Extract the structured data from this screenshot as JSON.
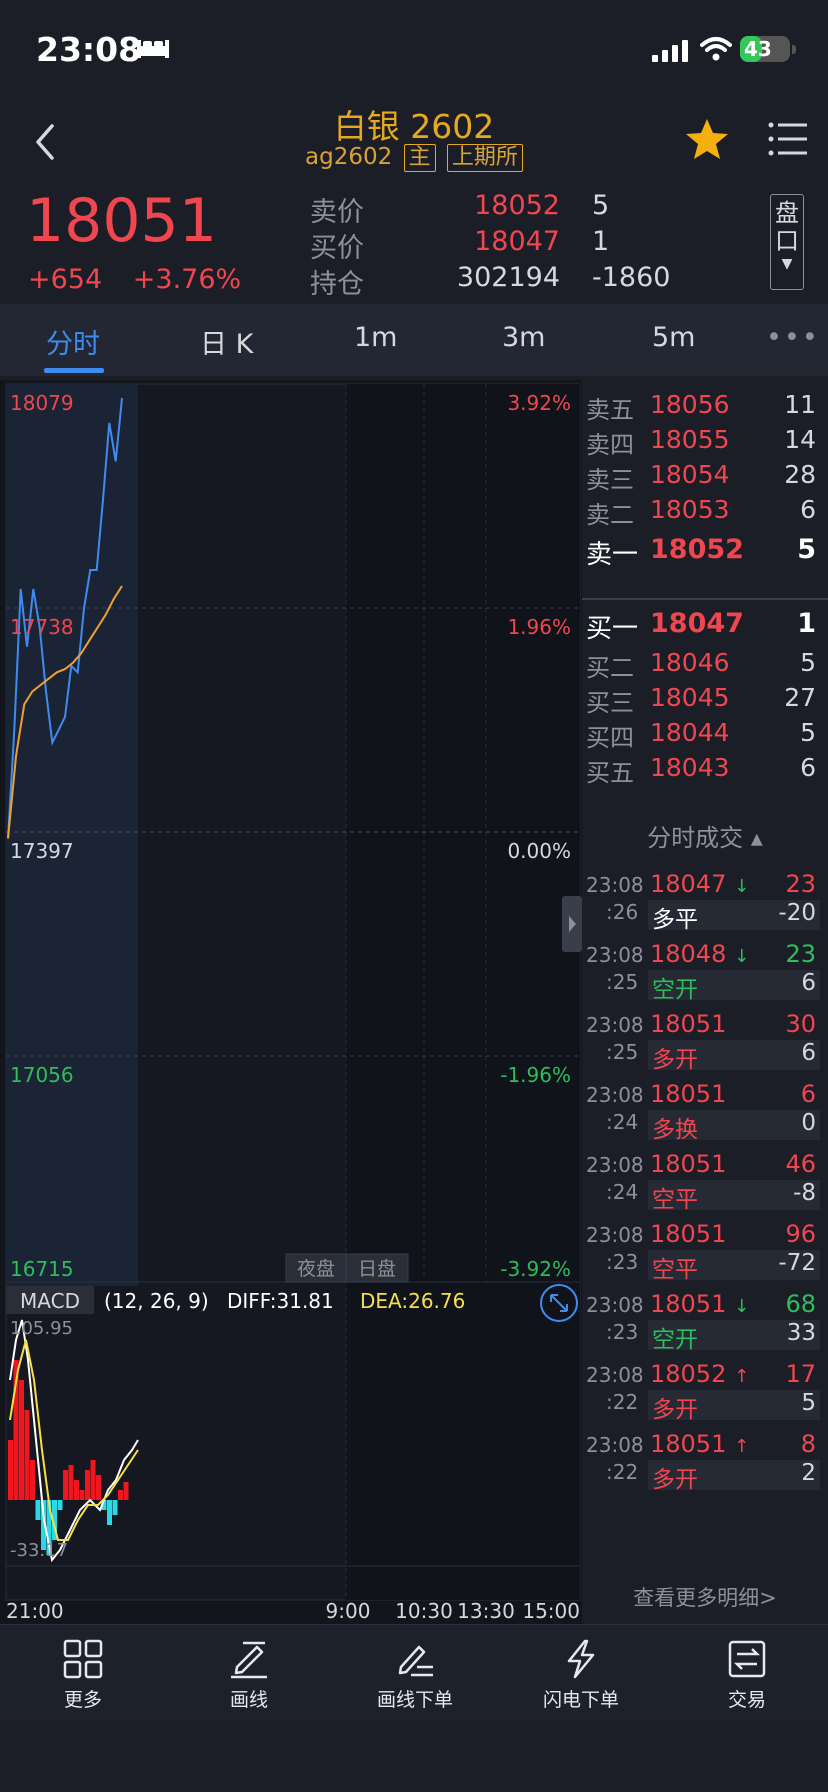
{
  "status": {
    "time": "23:08",
    "battery": "43"
  },
  "header": {
    "title": "白银 2602",
    "code": "ag2602",
    "tag_main": "主",
    "tag_exchange": "上期所"
  },
  "quote": {
    "last": "18051",
    "change": "+654",
    "change_pct": "+3.76%",
    "ask_label": "卖价",
    "ask_price": "18052",
    "ask_vol": "5",
    "bid_label": "买价",
    "bid_price": "18047",
    "bid_vol": "1",
    "oi_label": "持仓",
    "oi": "302194",
    "oi_change": "-1860",
    "pankou_btn": "盘口"
  },
  "tabs": [
    "分时",
    "日 K",
    "1m",
    "3m",
    "5m"
  ],
  "chart": {
    "y_labels": [
      "18079",
      "17738",
      "17397",
      "17056",
      "16715"
    ],
    "pct_labels": [
      "3.92%",
      "1.96%",
      "0.00%",
      "-1.96%",
      "-3.92%"
    ],
    "session_night": "夜盘",
    "session_day": "日盘",
    "indicator": "MACD",
    "params": "(12, 26, 9)",
    "diff": "DIFF:31.81",
    "dea": "DEA:26.76",
    "macd_max": "105.95",
    "macd_min": "-33.17",
    "time_labels": [
      "21:00",
      "9:00",
      "10:30",
      "13:30",
      "15:00"
    ]
  },
  "chart_data": {
    "type": "line",
    "y_range": [
      16715,
      18079
    ],
    "base": 17397,
    "series": [
      {
        "values": [
          17390,
          17560,
          17780,
          17690,
          17780,
          17720,
          17620,
          17540,
          17560,
          17580,
          17660,
          17650,
          17750,
          17810,
          17810,
          17920,
          18040,
          17980,
          18079
        ]
      },
      {
        "values": [
          17390,
          17520,
          17600,
          17620,
          17630,
          17640,
          17650,
          17655,
          17665,
          17680,
          17700,
          17720,
          17740,
          17765,
          17785
        ]
      }
    ]
  },
  "book": {
    "asks": [
      {
        "label": "卖五",
        "price": "18056",
        "vol": "11"
      },
      {
        "label": "卖四",
        "price": "18055",
        "vol": "14"
      },
      {
        "label": "卖三",
        "price": "18054",
        "vol": "28"
      },
      {
        "label": "卖二",
        "price": "18053",
        "vol": "6"
      },
      {
        "label": "卖一",
        "price": "18052",
        "vol": "5"
      }
    ],
    "bids": [
      {
        "label": "买一",
        "price": "18047",
        "vol": "1"
      },
      {
        "label": "买二",
        "price": "18046",
        "vol": "5"
      },
      {
        "label": "买三",
        "price": "18045",
        "vol": "27"
      },
      {
        "label": "买四",
        "price": "18044",
        "vol": "5"
      },
      {
        "label": "买五",
        "price": "18043",
        "vol": "6"
      }
    ],
    "trades_title": "分时成交 ▴",
    "trades": [
      {
        "time": "23:08",
        "sec": ":26",
        "price": "18047",
        "dir": "down",
        "vol": "23",
        "vol_color": "red",
        "type": "多平",
        "type_color": "white",
        "oi": "-20"
      },
      {
        "time": "23:08",
        "sec": ":25",
        "price": "18048",
        "dir": "down",
        "vol": "23",
        "vol_color": "green",
        "type": "空开",
        "type_color": "green",
        "oi": "6"
      },
      {
        "time": "23:08",
        "sec": ":25",
        "price": "18051",
        "dir": "",
        "vol": "30",
        "vol_color": "red",
        "type": "多开",
        "type_color": "red",
        "oi": "6"
      },
      {
        "time": "23:08",
        "sec": ":24",
        "price": "18051",
        "dir": "",
        "vol": "6",
        "vol_color": "red",
        "type": "多换",
        "type_color": "red",
        "oi": "0"
      },
      {
        "time": "23:08",
        "sec": ":24",
        "price": "18051",
        "dir": "",
        "vol": "46",
        "vol_color": "red",
        "type": "空平",
        "type_color": "red",
        "oi": "-8"
      },
      {
        "time": "23:08",
        "sec": ":23",
        "price": "18051",
        "dir": "",
        "vol": "96",
        "vol_color": "red",
        "type": "空平",
        "type_color": "red",
        "oi": "-72"
      },
      {
        "time": "23:08",
        "sec": ":23",
        "price": "18051",
        "dir": "down",
        "vol": "68",
        "vol_color": "green",
        "type": "空开",
        "type_color": "green",
        "oi": "33"
      },
      {
        "time": "23:08",
        "sec": ":22",
        "price": "18052",
        "dir": "up",
        "vol": "17",
        "vol_color": "red",
        "type": "多开",
        "type_color": "red",
        "oi": "5"
      },
      {
        "time": "23:08",
        "sec": ":22",
        "price": "18051",
        "dir": "up",
        "vol": "8",
        "vol_color": "red",
        "type": "多开",
        "type_color": "red",
        "oi": "2"
      }
    ],
    "more_detail": "查看更多明细>"
  },
  "toolbar": [
    {
      "label": "更多",
      "icon": "grid-icon"
    },
    {
      "label": "画线",
      "icon": "pen-line-icon"
    },
    {
      "label": "画线下单",
      "icon": "pen-order-icon"
    },
    {
      "label": "闪电下单",
      "icon": "lightning-icon"
    },
    {
      "label": "交易",
      "icon": "trade-icon"
    }
  ]
}
